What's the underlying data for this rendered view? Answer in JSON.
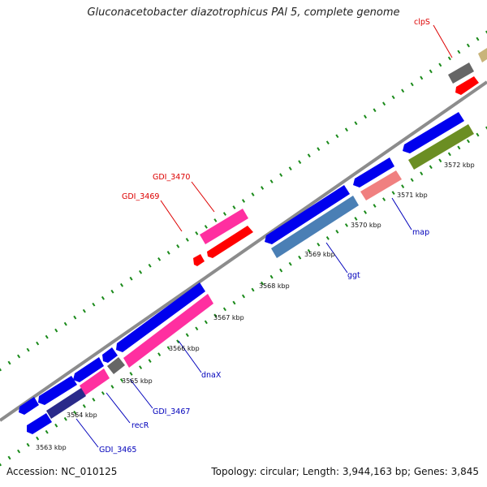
{
  "title": "Gluconacetobacter diazotrophicus PAl 5, complete genome",
  "footer": {
    "accession": "Accession: NC_010125",
    "summary": "Topology: circular; Length: 3,944,163 bp; Genes: 3,845"
  },
  "colors": {
    "backbone": "#8c8c8c",
    "tick": "#1a8a1a",
    "label_red": "#dd0000",
    "label_blue": "#0000bb",
    "blue": "#0000ee",
    "red": "#ff0000",
    "pink": "#ff2fa0",
    "gray": "#666666",
    "steel": "#4a7fb5",
    "olive": "#6b8e23",
    "salmon": "#f08080",
    "khaki": "#c8b47a",
    "navy": "#2a2a8a"
  },
  "ticks": [
    {
      "label": "3563 kbp"
    },
    {
      "label": "3564 kbp"
    },
    {
      "label": "3565 kbp"
    },
    {
      "label": "3566 kbp"
    },
    {
      "label": "3567 kbp"
    },
    {
      "label": "3568 kbp"
    },
    {
      "label": "3569 kbp"
    },
    {
      "label": "3570 kbp"
    },
    {
      "label": "3571 kbp"
    },
    {
      "label": "3572 kbp"
    }
  ],
  "gene_labels": {
    "clpS": "clpS",
    "gdi3470": "GDI_3470",
    "gdi3469": "GDI_3469",
    "map": "map",
    "ggt": "ggt",
    "dnaX": "dnaX",
    "gdi3467": "GDI_3467",
    "recR": "recR",
    "gdi3465": "GDI_3465"
  }
}
